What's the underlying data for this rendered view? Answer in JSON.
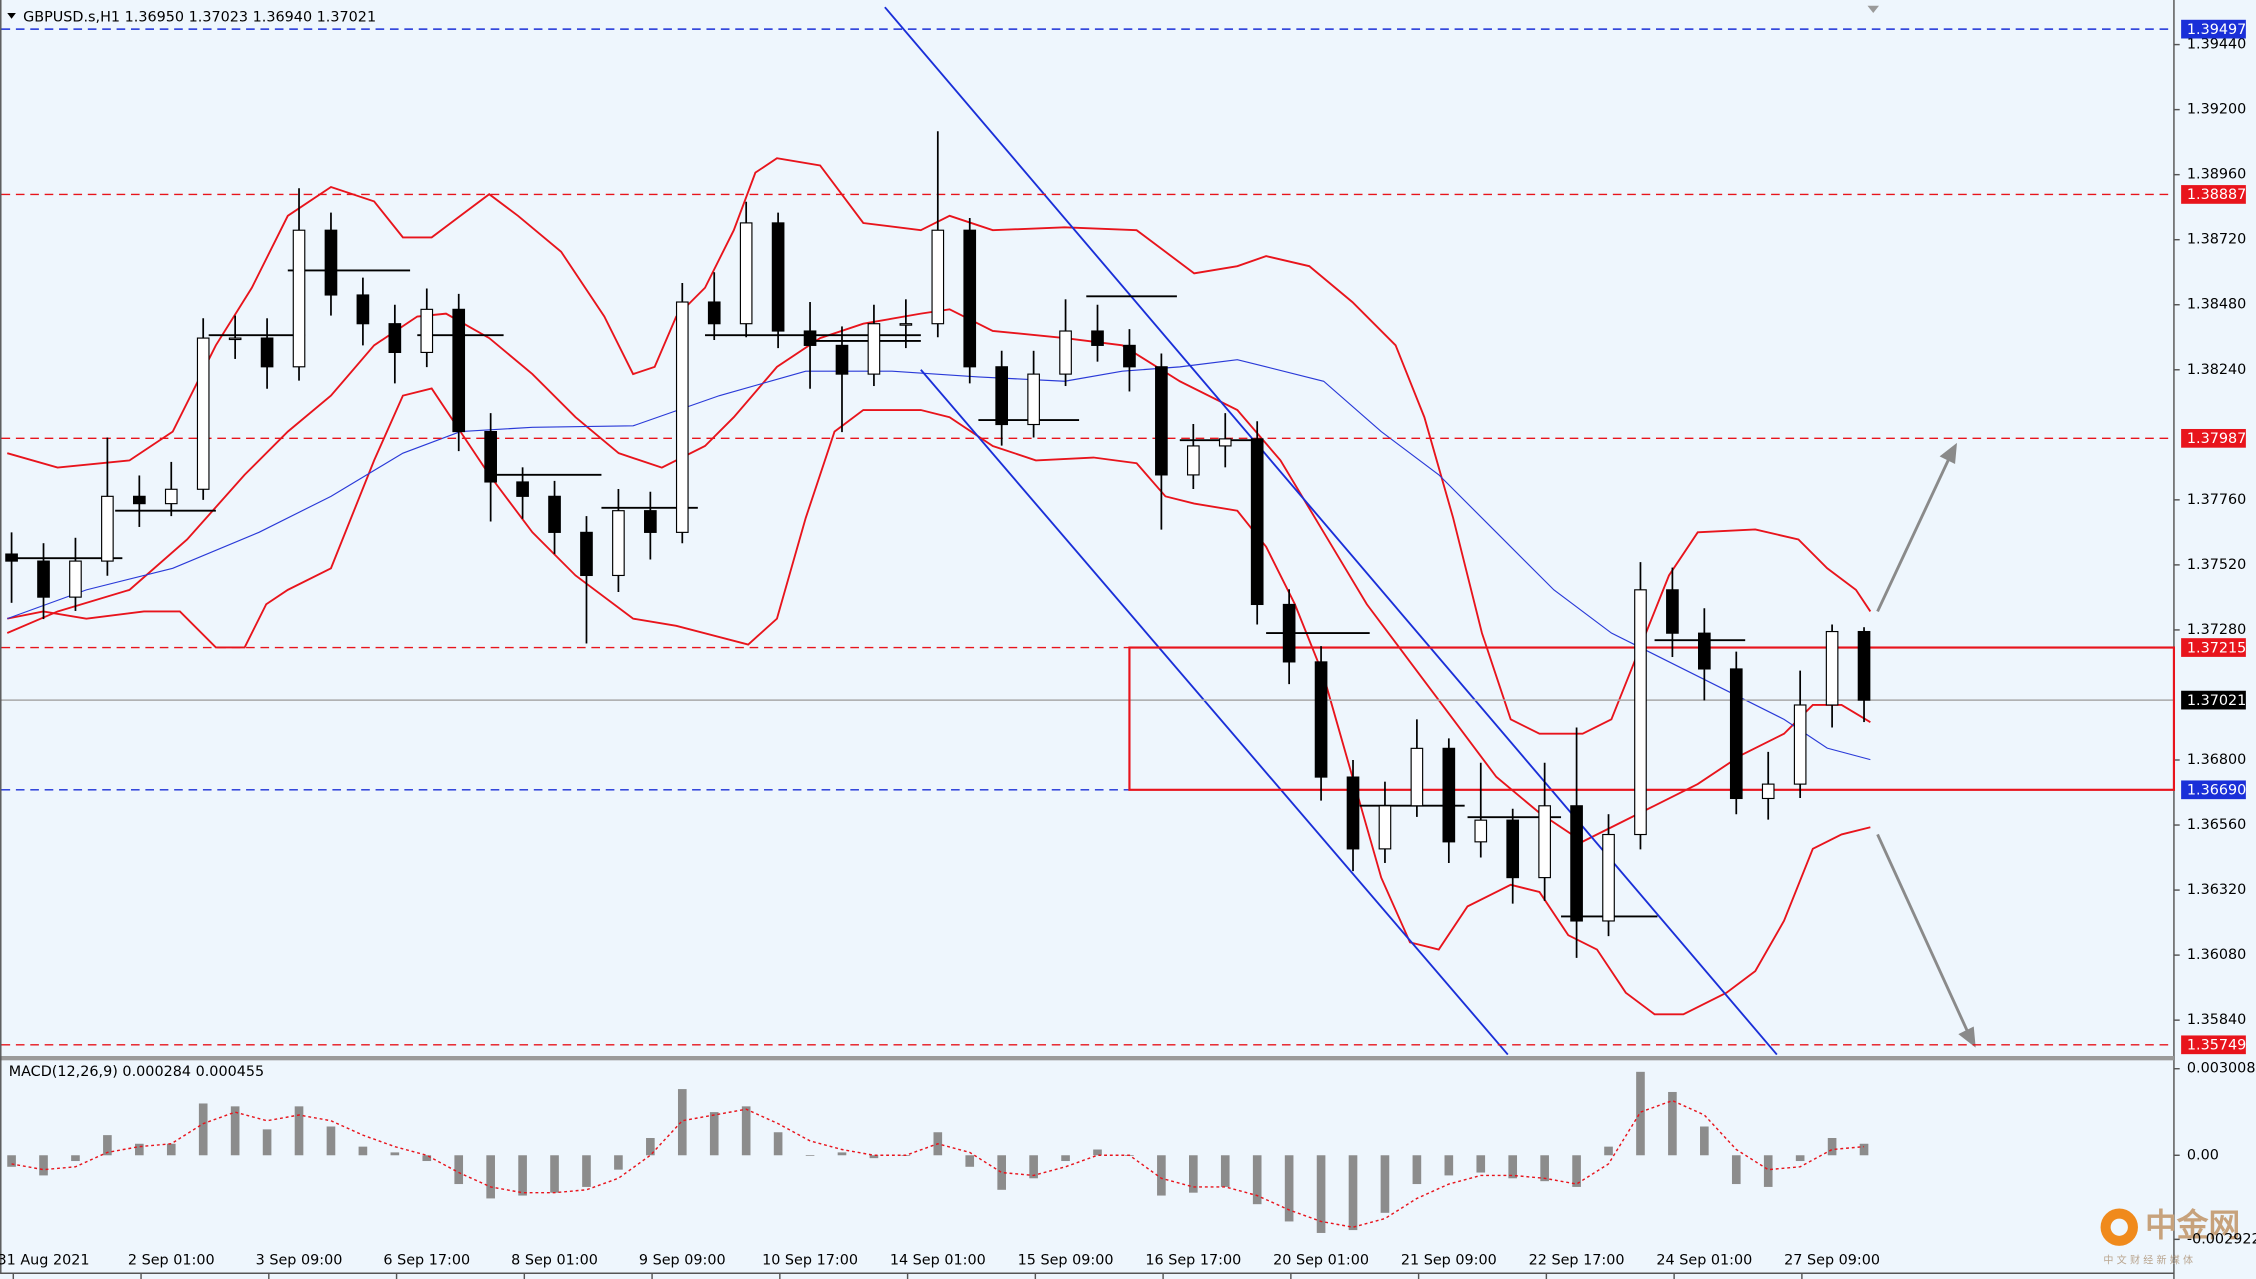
{
  "chart_data": [
    {
      "type": "candlestick",
      "title": "GBPUSD.s,H1  1.36950 1.37023 1.36940 1.37021",
      "categories": [
        null,
        "31 Aug 2021",
        null,
        null,
        null,
        "2 Sep 01:00",
        null,
        null,
        null,
        "3 Sep 09:00",
        null,
        null,
        null,
        "6 Sep 17:00",
        null,
        null,
        null,
        "8 Sep 01:00",
        null,
        null,
        null,
        "9 Sep 09:00",
        null,
        null,
        null,
        "10 Sep 17:00",
        null,
        null,
        null,
        "14 Sep 01:00",
        null,
        null,
        null,
        "15 Sep 09:00",
        null,
        null,
        null,
        "16 Sep 17:00",
        null,
        null,
        null,
        "20 Sep 01:00",
        null,
        null,
        null,
        "21 Sep 09:00",
        null,
        null,
        null,
        "22 Sep 17:00",
        null,
        null,
        null,
        "24 Sep 01:00",
        null,
        null,
        null,
        "27 Sep 09:00",
        null
      ],
      "open": [
        1.3756,
        1.37534,
        1.37401,
        1.37534,
        1.37773,
        1.37746,
        1.37799,
        1.38357,
        1.38357,
        1.38251,
        1.38755,
        1.38516,
        1.3841,
        1.38304,
        1.38463,
        1.38012,
        1.37826,
        1.37773,
        1.3764,
        1.37481,
        1.3772,
        1.3764,
        1.3849,
        1.3841,
        1.38782,
        1.38383,
        1.3833,
        1.38224,
        1.3841,
        1.3841,
        1.38755,
        1.38251,
        1.38038,
        1.38224,
        1.38383,
        1.3833,
        1.38251,
        1.37852,
        1.37959,
        1.37985,
        1.37374,
        1.37162,
        1.36737,
        1.36472,
        1.36631,
        1.36843,
        1.36498,
        1.36578,
        1.36366,
        1.36631,
        1.36206,
        1.36525,
        1.37428,
        1.37268,
        1.37136,
        1.36658,
        1.36711,
        1.37003,
        1.37274
      ],
      "high": [
        1.3764,
        1.376,
        1.3762,
        1.3799,
        1.3785,
        1.379,
        1.3843,
        1.3844,
        1.3843,
        1.3891,
        1.3882,
        1.3858,
        1.3848,
        1.3854,
        1.3852,
        1.3808,
        1.3788,
        1.3783,
        1.377,
        1.378,
        1.3779,
        1.3856,
        1.386,
        1.3886,
        1.3882,
        1.3849,
        1.384,
        1.3848,
        1.385,
        1.3912,
        1.388,
        1.3831,
        1.3831,
        1.385,
        1.3848,
        1.3839,
        1.383,
        1.3804,
        1.3808,
        1.3805,
        1.3743,
        1.3722,
        1.368,
        1.3672,
        1.3695,
        1.3688,
        1.3679,
        1.3662,
        1.3679,
        1.3692,
        1.366,
        1.3753,
        1.3751,
        1.3736,
        1.372,
        1.3683,
        1.3713,
        1.373,
        1.3729
      ],
      "low": [
        1.3738,
        1.3732,
        1.3735,
        1.3748,
        1.3766,
        1.377,
        1.3776,
        1.3828,
        1.3817,
        1.382,
        1.3844,
        1.3833,
        1.3819,
        1.3825,
        1.3794,
        1.3768,
        1.3769,
        1.3756,
        1.3723,
        1.3742,
        1.3754,
        1.376,
        1.3835,
        1.3836,
        1.3832,
        1.3817,
        1.3801,
        1.3818,
        1.3832,
        1.3836,
        1.3819,
        1.3796,
        1.3799,
        1.3818,
        1.3827,
        1.3816,
        1.3765,
        1.378,
        1.3788,
        1.373,
        1.3708,
        1.3665,
        1.3639,
        1.3642,
        1.3659,
        1.3642,
        1.3644,
        1.3627,
        1.3628,
        1.3607,
        1.3615,
        1.3647,
        1.3718,
        1.3702,
        1.366,
        1.3658,
        1.3666,
        1.3692,
        1.3694
      ],
      "close": [
        1.37534,
        1.37401,
        1.37534,
        1.37773,
        1.37746,
        1.37799,
        1.38357,
        1.38357,
        1.38251,
        1.38755,
        1.38516,
        1.3841,
        1.38304,
        1.38463,
        1.38012,
        1.37826,
        1.37773,
        1.3764,
        1.37481,
        1.3772,
        1.3764,
        1.3849,
        1.3841,
        1.38782,
        1.38383,
        1.3833,
        1.38224,
        1.3841,
        1.3841,
        1.38755,
        1.38251,
        1.38038,
        1.38224,
        1.38383,
        1.3833,
        1.38251,
        1.37852,
        1.37959,
        1.37985,
        1.37374,
        1.37162,
        1.36737,
        1.36472,
        1.36631,
        1.36843,
        1.36498,
        1.36578,
        1.36366,
        1.36631,
        1.36206,
        1.36525,
        1.37428,
        1.37268,
        1.37136,
        1.36658,
        1.36711,
        1.37003,
        1.37274,
        1.37021
      ],
      "up_color": "#ffffff",
      "down_color": "#000000",
      "wick_color": "#000000",
      "ylim": [
        1.35713,
        1.39578
      ],
      "yticks": [
        {
          "value": 1.3944,
          "label": "1.39440"
        },
        {
          "value": 1.392,
          "label": "1.39200"
        },
        {
          "value": 1.3896,
          "label": "1.38960"
        },
        {
          "value": 1.3872,
          "label": "1.38720"
        },
        {
          "value": 1.3848,
          "label": "1.38480"
        },
        {
          "value": 1.3824,
          "label": "1.38240"
        },
        {
          "value": 1.3776,
          "label": "1.37760"
        },
        {
          "value": 1.3752,
          "label": "1.37520"
        },
        {
          "value": 1.3728,
          "label": "1.37280"
        },
        {
          "value": 1.368,
          "label": "1.36800"
        },
        {
          "value": 1.3656,
          "label": "1.36560"
        },
        {
          "value": 1.3632,
          "label": "1.36320"
        },
        {
          "value": 1.3608,
          "label": "1.36080"
        },
        {
          "value": 1.3584,
          "label": "1.35840"
        }
      ],
      "levels": [
        {
          "value": 1.39497,
          "color": "#1a2fd8",
          "style": "dashed"
        },
        {
          "value": 1.38887,
          "color": "#e8141c",
          "style": "dashed"
        },
        {
          "value": 1.37987,
          "color": "#e8141c",
          "style": "dashed"
        },
        {
          "value": 1.37215,
          "color": "#e8141c",
          "style": "dashed"
        },
        {
          "value": 1.37021,
          "color": "#000000",
          "style": "solid"
        },
        {
          "value": 1.3669,
          "label": "1.36690",
          "color": "#1a2fd8",
          "style": "dashed"
        },
        {
          "value": 1.35749,
          "color": "#e8141c",
          "style": "dashed"
        }
      ]
    },
    {
      "type": "macd",
      "title": "MACD(12,26,9) 0.000284 0.000455",
      "histogram": [
        -0.0004,
        -0.0007,
        -0.0002,
        0.0007,
        0.0004,
        0.0004,
        0.0018,
        0.0017,
        0.0009,
        0.0017,
        0.001,
        0.0003,
        0.0001,
        -0.0002,
        -0.001,
        -0.0015,
        -0.0014,
        -0.0013,
        -0.0011,
        -0.0005,
        0.0006,
        0.0023,
        0.0015,
        0.0017,
        0.0008,
        0,
        0.0001,
        -0.0001,
        0,
        0.0008,
        -0.0004,
        -0.0012,
        -0.0008,
        -0.0002,
        0.0002,
        0,
        -0.0014,
        -0.0013,
        -0.0011,
        -0.0017,
        -0.0023,
        -0.0027,
        -0.0026,
        -0.002,
        -0.001,
        -0.0007,
        -0.0006,
        -0.0008,
        -0.0009,
        -0.0011,
        0.0003,
        0.0029,
        0.0022,
        0.001,
        -0.001,
        -0.0011,
        -0.0002,
        0.0006,
        0.0004
      ],
      "signal": [
        -0.0003,
        -0.0005,
        -0.0004,
        0.0001,
        0.0003,
        0.0004,
        0.0011,
        0.0015,
        0.0012,
        0.0014,
        0.0012,
        0.0007,
        0.0003,
        0,
        -0.0006,
        -0.0011,
        -0.0013,
        -0.0013,
        -0.0012,
        -0.0008,
        0,
        0.0012,
        0.0014,
        0.0016,
        0.0011,
        0.0005,
        0.0002,
        0,
        0,
        0.0004,
        0.0001,
        -0.0006,
        -0.0007,
        -0.0004,
        0,
        0,
        -0.0008,
        -0.0011,
        -0.0011,
        -0.0014,
        -0.0019,
        -0.0023,
        -0.0025,
        -0.0022,
        -0.0015,
        -0.001,
        -0.0007,
        -0.0007,
        -0.0008,
        -0.001,
        -0.0003,
        0.0015,
        0.0019,
        0.0014,
        0.0002,
        -0.0005,
        -0.0004,
        0.0002,
        0.0003
      ],
      "histogram_color": "#8c8c8c",
      "signal_color": "#e8141c",
      "ylim": [
        -0.0041,
        0.00325
      ],
      "yticks": [
        0.003008,
        {
          "value": 0,
          "label": "0.00"
        },
        -0.002922
      ]
    }
  ],
  "watermark": {
    "brand": "中金网",
    "tagline": "中 文 财 经 新 媒 体"
  }
}
